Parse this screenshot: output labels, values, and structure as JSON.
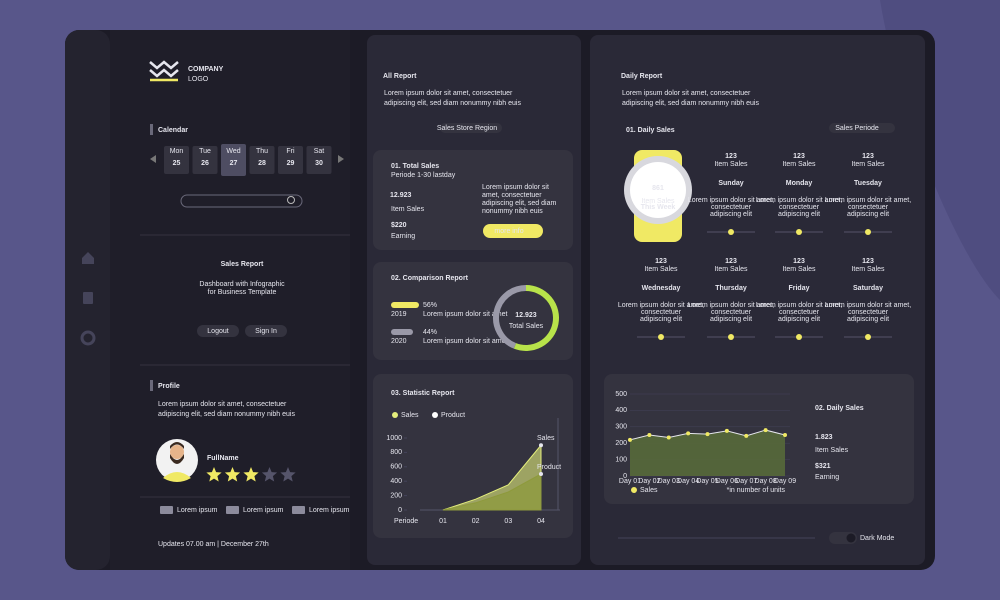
{
  "sidebar": {
    "logo": {
      "name": "COMPANY",
      "tag": "LOGO"
    },
    "calendar": {
      "title": "Calendar",
      "selected": 2,
      "days": [
        {
          "day": "Mon",
          "date": "25"
        },
        {
          "day": "Tue",
          "date": "26"
        },
        {
          "day": "Wed",
          "date": "27"
        },
        {
          "day": "Thu",
          "date": "28"
        },
        {
          "day": "Fri",
          "date": "29"
        },
        {
          "day": "Sat",
          "date": "30"
        }
      ]
    },
    "title": "Sales Report",
    "subtitle": [
      "Dashboard with Infographic",
      "for Business Template"
    ],
    "buttons": [
      "Logout",
      "Sign In"
    ],
    "profile": {
      "title": "Profile",
      "text": [
        "Lorem ipsum dolor sit amet, consectetuer",
        "adipiscing elit, sed diam nonummy nibh euis"
      ],
      "name": "FullName",
      "rating": 3,
      "rating_max": 5,
      "contacts": [
        "Lorem ipsum",
        "Lorem ipsum",
        "Lorem ipsum"
      ]
    },
    "footer": "Updates 07.00 am | December 27th"
  },
  "all_report": {
    "title": "All Report",
    "text": [
      "Lorem ipsum dolor sit amet, consectetuer",
      "adipiscing elit, sed diam nonummy nibh euis"
    ],
    "filter": "Sales Store Region",
    "total_sales": {
      "title": "01. Total Sales",
      "period": "Periode 1-30 lastday",
      "value": "12.923",
      "value_label": "Item Sales",
      "earning": "$220",
      "earning_label": "Earning",
      "text": [
        "Lorem ipsum dolor sit",
        "amet, consectetuer",
        "adipiscing elit, sed diam",
        "nonummy nibh euis"
      ],
      "button": "more info"
    },
    "comparison": {
      "title": "02. Comparison Report",
      "items": [
        {
          "year": "2019",
          "value": 56,
          "label": "56%",
          "note": "Lorem ipsum dolor sit amet"
        },
        {
          "year": "2020",
          "value": 44,
          "label": "44%",
          "note": "Lorem ipsum dolor sit amet"
        }
      ],
      "total": "12.923",
      "total_label": "Total Sales"
    },
    "statistic": {
      "title": "03. Statistic Report",
      "chart_data": {
        "type": "area",
        "x_label": "Periode",
        "categories": [
          "01",
          "02",
          "03",
          "04"
        ],
        "series": [
          {
            "name": "Sales",
            "color": "#e4ee7c",
            "values": [
              0,
              150,
              350,
              900
            ]
          },
          {
            "name": "Product",
            "color": "#8e9a3c",
            "values": [
              0,
              100,
              250,
              500
            ]
          }
        ],
        "ylim": [
          0,
          1000
        ],
        "yticks": [
          0,
          200,
          400,
          600,
          800,
          1000
        ]
      }
    }
  },
  "daily_report": {
    "title": "Daily Report",
    "text": [
      "Lorem ipsum dolor sit amet, consectetuer",
      "adipiscing elit, sed diam nonummy nibh euis"
    ],
    "sales_title": "01. Daily Sales",
    "filter": "Sales Periode",
    "weekly": {
      "value": "861",
      "label": "Item Sales",
      "period": "This Week"
    },
    "days": [
      {
        "value": "123",
        "label": "Item Sales",
        "day": "Sunday",
        "text": [
          "Lorem ipsum dolor sit amet,",
          "consectetuer",
          "adipiscing elit"
        ]
      },
      {
        "value": "123",
        "label": "Item Sales",
        "day": "Monday",
        "text": [
          "Lorem ipsum dolor sit amet,",
          "consectetuer",
          "adipiscing elit"
        ]
      },
      {
        "value": "123",
        "label": "Item Sales",
        "day": "Tuesday",
        "text": [
          "Lorem ipsum dolor sit amet,",
          "consectetuer",
          "adipiscing elit"
        ]
      },
      {
        "value": "123",
        "label": "Item Sales",
        "day": "Wednesday",
        "text": [
          "Lorem ipsum dolor sit amet,",
          "consectetuer",
          "adipiscing elit"
        ]
      },
      {
        "value": "123",
        "label": "Item Sales",
        "day": "Thursday",
        "text": [
          "Lorem ipsum dolor sit amet,",
          "consectetuer",
          "adipiscing elit"
        ]
      },
      {
        "value": "123",
        "label": "Item Sales",
        "day": "Friday",
        "text": [
          "Lorem ipsum dolor sit amet,",
          "consectetuer",
          "adipiscing elit"
        ]
      },
      {
        "value": "123",
        "label": "Item Sales",
        "day": "Saturday",
        "text": [
          "Lorem ipsum dolor sit amet,",
          "consectetuer",
          "adipiscing elit"
        ]
      }
    ],
    "daily_sales": {
      "title": "02. Daily Sales",
      "value": "1.823",
      "value_label": "Item Sales",
      "earning": "$321",
      "earning_label": "Earning",
      "chart_data": {
        "type": "line",
        "note": "*in number of units",
        "categories": [
          "Day 01",
          "Day 02",
          "Day 03",
          "Day 04",
          "Day 05",
          "Day 06",
          "Day 07",
          "Day 08",
          "Day 09"
        ],
        "series": [
          {
            "name": "Sales",
            "color": "#f0e964",
            "values": [
              220,
              250,
              235,
              260,
              255,
              275,
              245,
              280,
              250
            ]
          }
        ],
        "ylim": [
          0,
          500
        ],
        "yticks": [
          0,
          100,
          200,
          300,
          400,
          500
        ]
      }
    }
  },
  "dark_mode": "Dark Mode"
}
